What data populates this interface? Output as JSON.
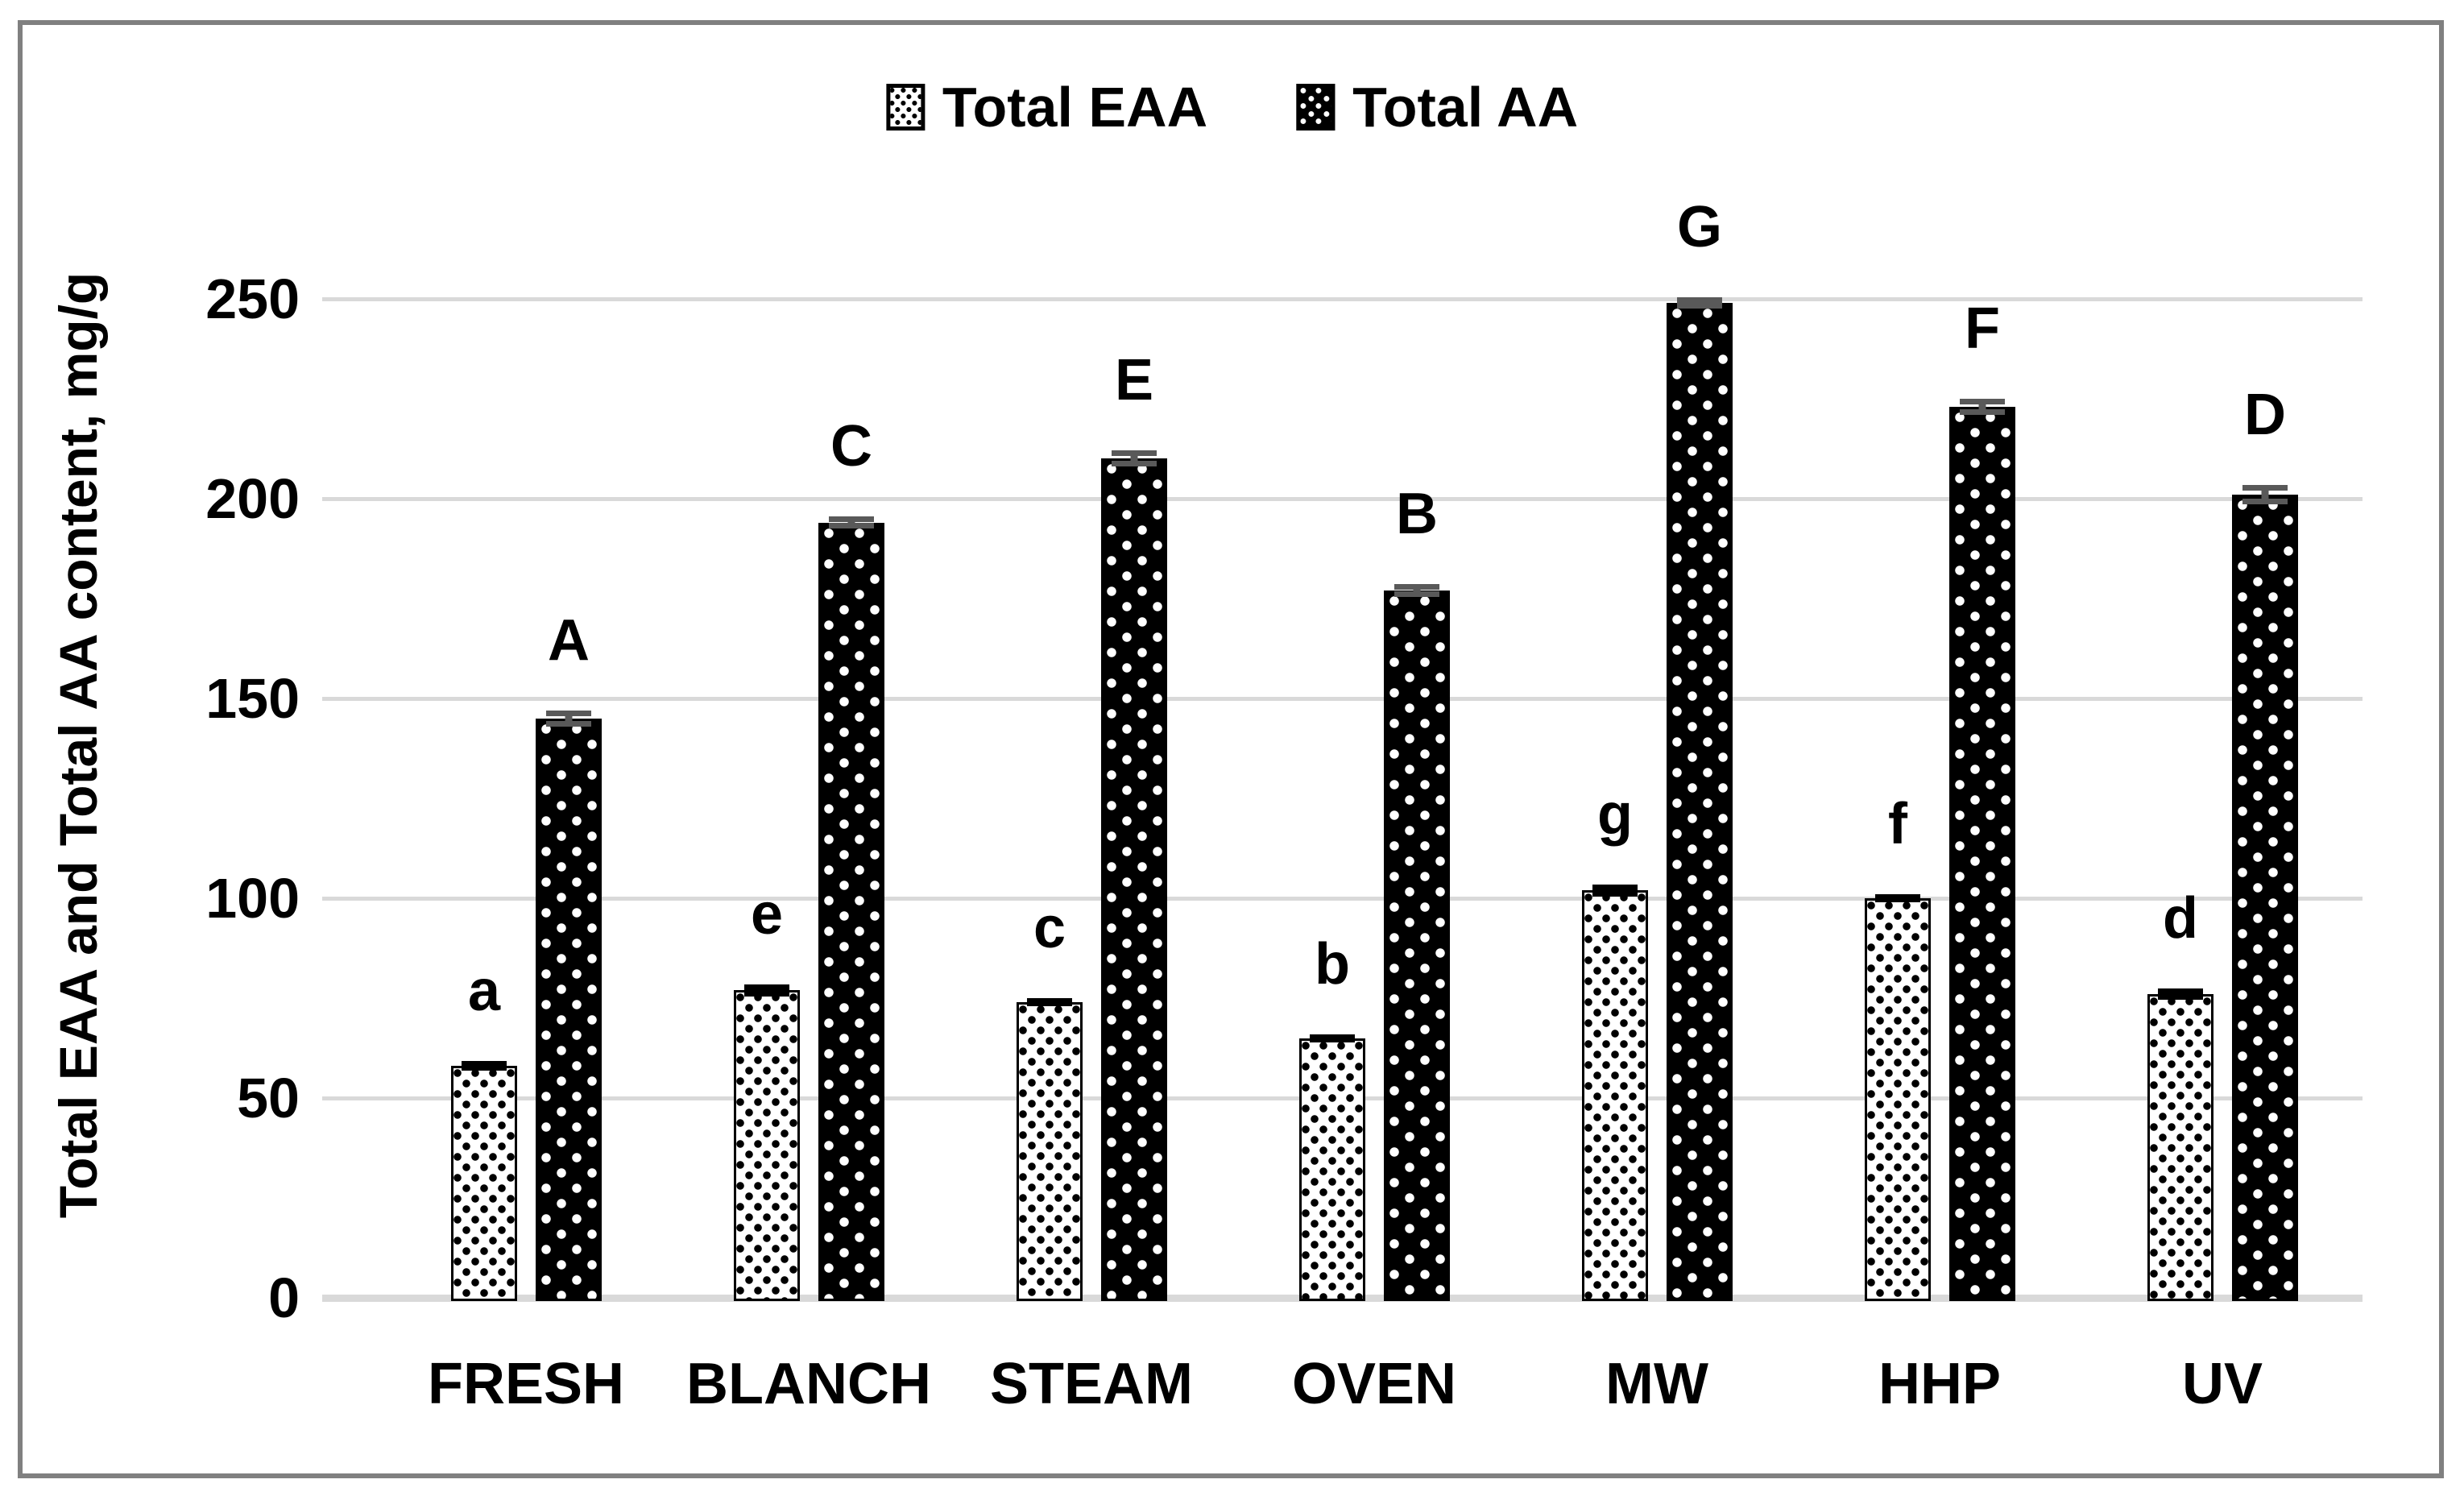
{
  "figure": {
    "border_color": "#808080",
    "background": "#ffffff",
    "gridline_color": "#d9d9d9",
    "error_bar_color_eaa": "#000000",
    "error_bar_color_aa": "#595959"
  },
  "legend": {
    "items": [
      {
        "label": "Total EAA",
        "series": "eaa",
        "swatch": "white-with-black-square-dots"
      },
      {
        "label": "Total AA",
        "series": "aa",
        "swatch": "black-with-white-square-dots"
      }
    ]
  },
  "y_axis": {
    "title": "Total EAA and Total AA content, mg/g",
    "ticks": [
      0,
      50,
      100,
      150,
      200,
      250
    ]
  },
  "chart_data": {
    "type": "bar",
    "title": "",
    "xlabel": "",
    "ylabel": "Total EAA and Total AA content, mg/g",
    "ylim": [
      0,
      250
    ],
    "ytick_step": 50,
    "grid": true,
    "legend_position": "top-center",
    "categories": [
      "FRESH",
      "BLANCH",
      "STEAM",
      "OVEN",
      "MW",
      "HHP",
      "UV"
    ],
    "series": [
      {
        "name": "Total EAA",
        "pattern": "white-with-black-square-dots",
        "values": [
          58,
          77,
          74,
          65,
          102,
          100,
          76
        ],
        "errors": [
          1.2,
          1.5,
          1.0,
          1.0,
          1.5,
          1.0,
          1.5
        ],
        "letters": [
          "a",
          "e",
          "c",
          "b",
          "g",
          "f",
          "d"
        ]
      },
      {
        "name": "Total AA",
        "pattern": "black-with-white-square-dots",
        "values": [
          145,
          194,
          210,
          177,
          249,
          223,
          201
        ],
        "errors": [
          2.0,
          1.5,
          2.0,
          1.6,
          1.5,
          2.0,
          2.5
        ],
        "letters": [
          "A",
          "C",
          "E",
          "B",
          "G",
          "F",
          "D"
        ]
      }
    ]
  }
}
